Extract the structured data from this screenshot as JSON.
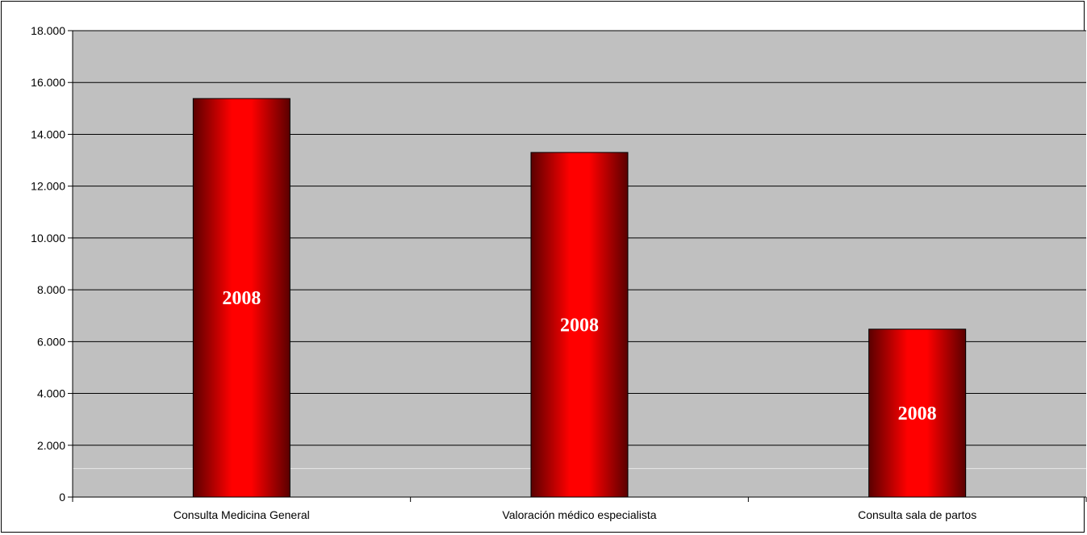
{
  "chart_data": {
    "type": "bar",
    "categories": [
      "Consulta Medicina General",
      "Valoración médico especialista",
      "Consulta sala de partos"
    ],
    "series": [
      {
        "values": [
          15380,
          13300,
          6480
        ],
        "data_labels": [
          "2008",
          "2008",
          "2008"
        ]
      }
    ],
    "ylim": [
      0,
      18000
    ],
    "yticks": [
      0,
      2000,
      4000,
      6000,
      8000,
      10000,
      12000,
      14000,
      16000,
      18000
    ],
    "ytick_labels": [
      "0",
      "2.000",
      "4.000",
      "6.000",
      "8.000",
      "10.000",
      "12.000",
      "14.000",
      "16.000",
      "18.000"
    ],
    "grid": true,
    "colors": {
      "plot_background": "#c0c0c0",
      "bar_center": "#ff0000",
      "bar_edge": "#6b0000",
      "gridline": "#000000"
    }
  }
}
